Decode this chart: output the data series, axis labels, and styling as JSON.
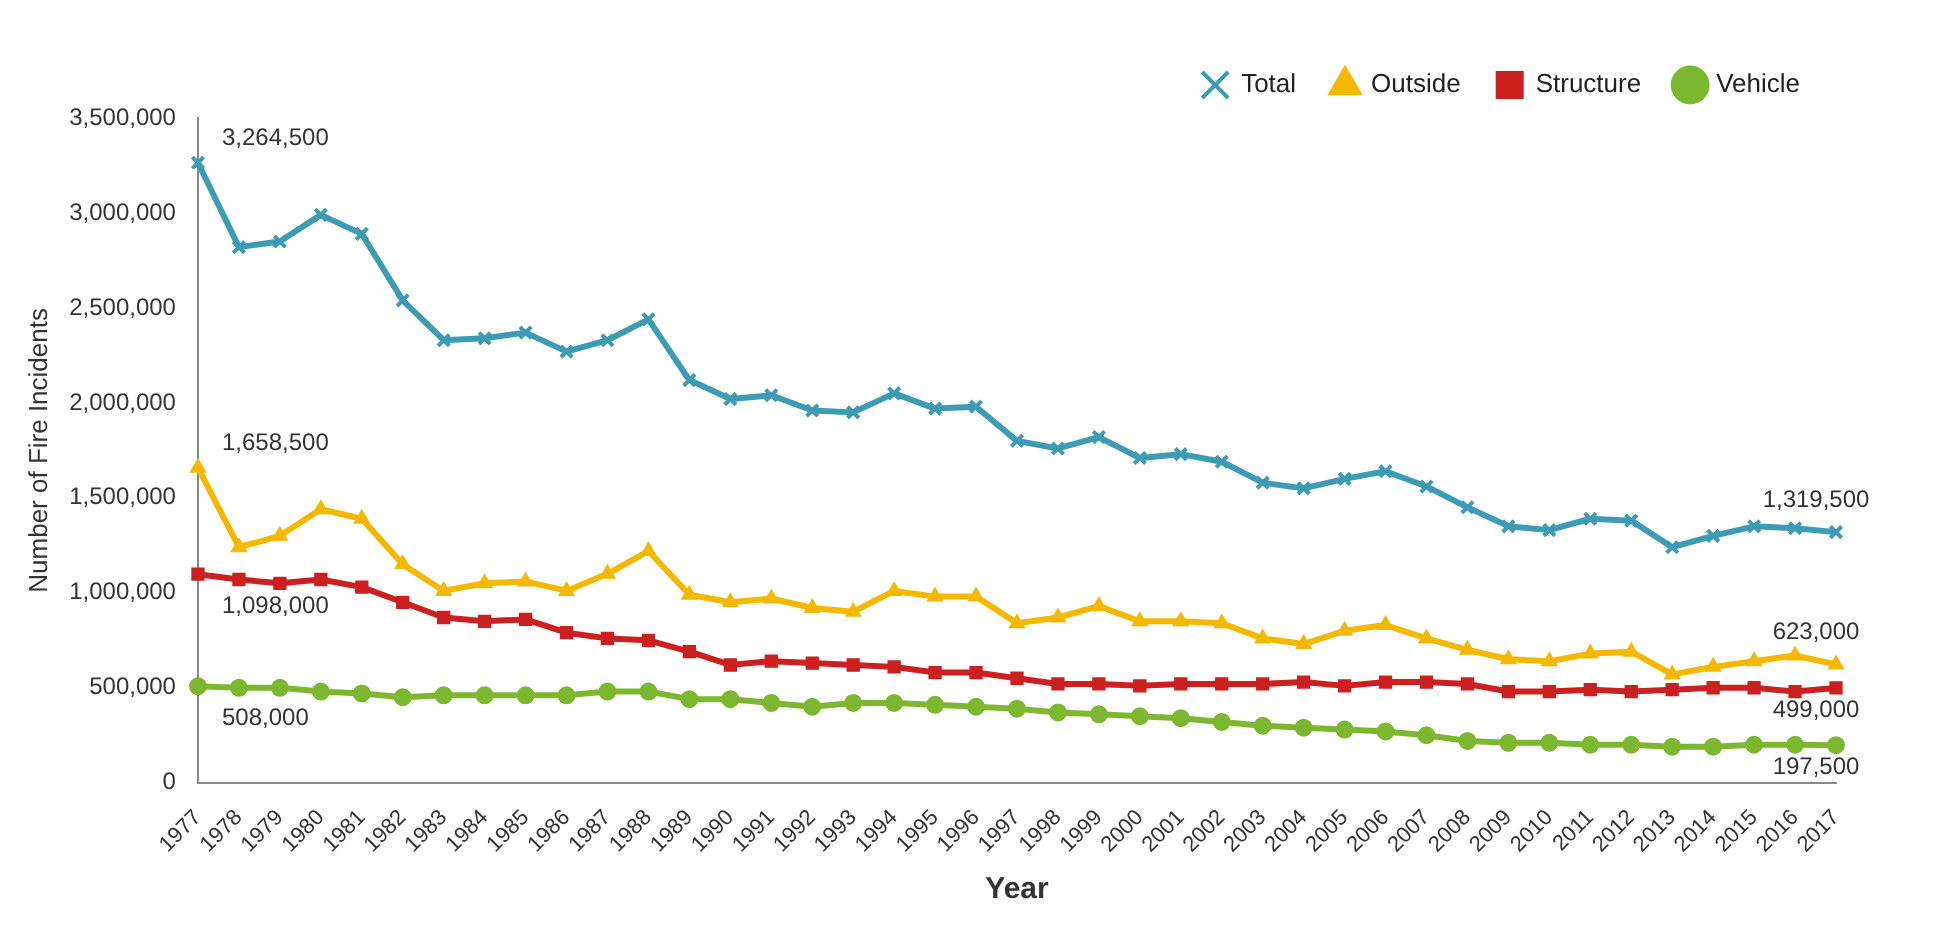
{
  "chart_data": {
    "type": "line",
    "xlabel": "Year",
    "ylabel": "Number of Fire Incidents",
    "categories": [
      "1977",
      "1978",
      "1979",
      "1980",
      "1981",
      "1982",
      "1983",
      "1984",
      "1985",
      "1986",
      "1987",
      "1988",
      "1989",
      "1990",
      "1991",
      "1992",
      "1993",
      "1994",
      "1995",
      "1996",
      "1997",
      "1998",
      "1999",
      "2000",
      "2001",
      "2002",
      "2003",
      "2004",
      "2005",
      "2006",
      "2007",
      "2008",
      "2009",
      "2010",
      "2011",
      "2012",
      "2013",
      "2014",
      "2015",
      "2016",
      "2017"
    ],
    "series": [
      {
        "name": "Total",
        "color": "#3d9cb3",
        "marker": "cross",
        "values": [
          3264500,
          2820000,
          2850000,
          2990000,
          2890000,
          2540000,
          2330000,
          2340000,
          2370000,
          2270000,
          2330000,
          2440000,
          2120000,
          2020000,
          2040000,
          1960000,
          1950000,
          2050000,
          1970000,
          1980000,
          1800000,
          1760000,
          1820000,
          1710000,
          1730000,
          1690000,
          1580000,
          1550000,
          1600000,
          1640000,
          1560000,
          1450000,
          1350000,
          1330000,
          1390000,
          1380000,
          1240000,
          1300000,
          1350000,
          1340000,
          1319500
        ]
      },
      {
        "name": "Outside",
        "color": "#f5b800",
        "marker": "triangle",
        "values": [
          1658500,
          1240000,
          1300000,
          1440000,
          1390000,
          1150000,
          1010000,
          1050000,
          1060000,
          1010000,
          1100000,
          1220000,
          990000,
          950000,
          970000,
          920000,
          900000,
          1010000,
          980000,
          980000,
          840000,
          870000,
          930000,
          850000,
          850000,
          840000,
          760000,
          730000,
          800000,
          830000,
          760000,
          700000,
          650000,
          640000,
          680000,
          690000,
          570000,
          610000,
          640000,
          670000,
          623000
        ]
      },
      {
        "name": "Structure",
        "color": "#cc1f1f",
        "marker": "square",
        "values": [
          1098000,
          1070000,
          1050000,
          1070000,
          1030000,
          950000,
          870000,
          850000,
          860000,
          790000,
          760000,
          750000,
          690000,
          620000,
          640000,
          630000,
          620000,
          610000,
          580000,
          580000,
          550000,
          520000,
          520000,
          510000,
          520000,
          520000,
          520000,
          530000,
          510000,
          530000,
          530000,
          520000,
          480000,
          480000,
          490000,
          480000,
          490000,
          500000,
          500000,
          480000,
          499000
        ]
      },
      {
        "name": "Vehicle",
        "color": "#7cb82f",
        "marker": "circle",
        "values": [
          508000,
          500000,
          500000,
          480000,
          470000,
          450000,
          460000,
          460000,
          460000,
          460000,
          480000,
          480000,
          440000,
          440000,
          420000,
          400000,
          420000,
          420000,
          410000,
          400000,
          390000,
          370000,
          360000,
          350000,
          340000,
          320000,
          300000,
          290000,
          280000,
          270000,
          250000,
          220000,
          210000,
          210000,
          200000,
          200000,
          190000,
          190000,
          200000,
          200000,
          197500
        ]
      }
    ],
    "ylim": [
      0,
      3500000
    ],
    "yticks": [
      0,
      {
        "value": 500000,
        "label": "500,000"
      },
      {
        "value": 1000000,
        "label": "1,000,000"
      },
      {
        "value": 1500000,
        "label": "1,500,000"
      },
      {
        "value": 2000000,
        "label": "2,000,000"
      },
      {
        "value": 2500000,
        "label": "2,500,000"
      },
      {
        "value": 3000000,
        "label": "3,000,000"
      },
      {
        "value": 3500000,
        "label": "3,500,000"
      }
    ],
    "legend": "top right",
    "grid": false,
    "annotations": [
      {
        "text": "3,264,500",
        "x": "1977",
        "y": 3264500
      },
      {
        "text": "1,658,500",
        "x": "1977",
        "y": 1658500
      },
      {
        "text": "1,098,000",
        "x": "1977",
        "y": 1098000
      },
      {
        "text": "508,000",
        "x": "1977",
        "y": 508000
      },
      {
        "text": "1,319,500",
        "x": "2017",
        "y": 1319500
      },
      {
        "text": "623,000",
        "x": "2017",
        "y": 623000
      },
      {
        "text": "499,000",
        "x": "2017",
        "y": 499000
      },
      {
        "text": "197,500",
        "x": "2017",
        "y": 197500
      }
    ]
  }
}
